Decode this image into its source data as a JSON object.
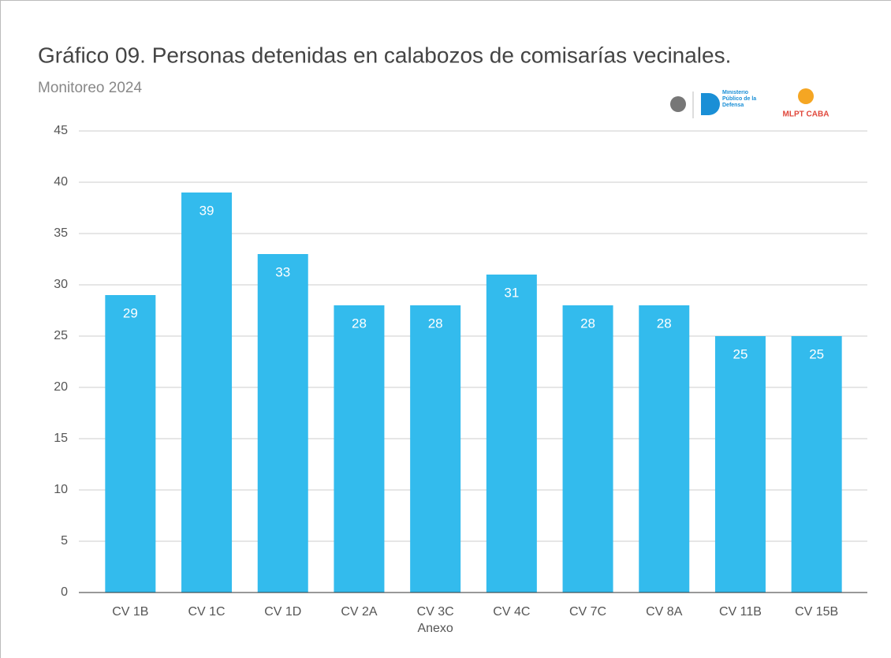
{
  "chart_data": {
    "type": "bar",
    "title": "Gráfico 09. Personas detenidas en calabozos de comisarías vecinales.",
    "subtitle": "Monitoreo 2024",
    "categories": [
      "CV 1B",
      "CV 1C",
      "CV 1D",
      "CV 2A",
      "CV 3C\nAnexo",
      "CV 4C",
      "CV 7C",
      "CV 8A",
      "CV 11B",
      "CV 15B"
    ],
    "values": [
      29,
      39,
      33,
      28,
      28,
      31,
      28,
      28,
      25,
      25
    ],
    "color": "#33bbed",
    "ylim": [
      0,
      45
    ],
    "yticks": [
      0,
      5,
      10,
      15,
      20,
      25,
      30,
      35,
      40,
      45
    ],
    "grid": true,
    "logos": {
      "mpd": "Ministerio Público de la Defensa",
      "mlpt": "MLPT CABA"
    }
  }
}
